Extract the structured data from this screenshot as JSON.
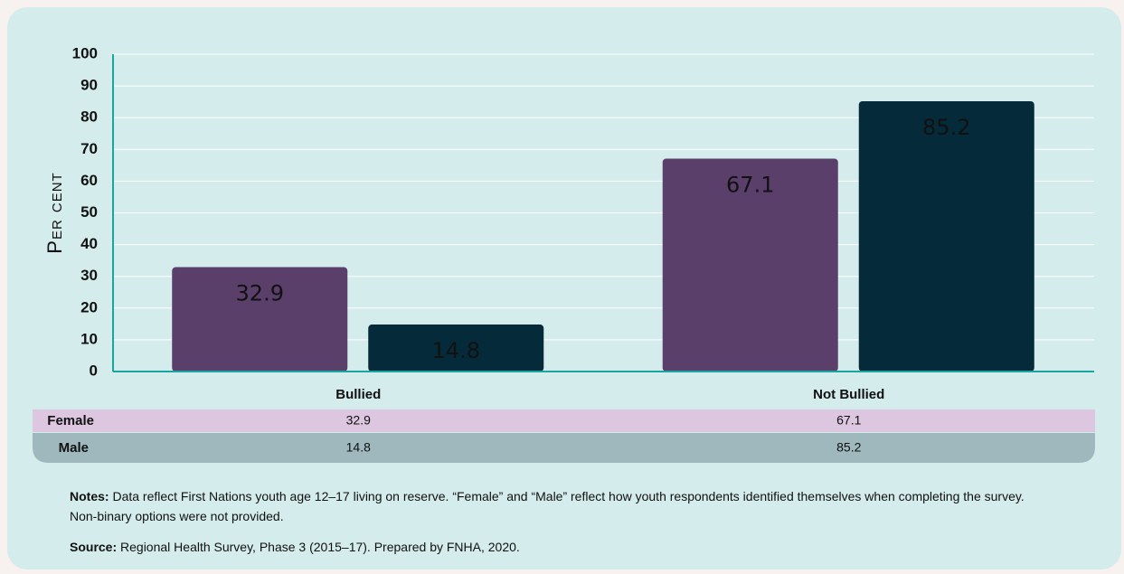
{
  "chart_data": {
    "type": "bar",
    "ylabel": "Per cent",
    "categories": [
      "Bullied",
      "Not Bullied"
    ],
    "series": [
      {
        "name": "Female",
        "color": "#5b3f6b",
        "values": [
          32.9,
          67.1
        ]
      },
      {
        "name": "Male",
        "color": "#052b3a",
        "values": [
          14.8,
          85.2
        ]
      }
    ],
    "ylim": [
      0,
      100
    ],
    "yticks": [
      0,
      10,
      20,
      30,
      40,
      50,
      60,
      70,
      80,
      90,
      100
    ],
    "grid": true
  },
  "notes": {
    "label": "Notes:",
    "text": "Data reflect First Nations youth age 12–17 living on reserve. “Female” and “Male” reflect how youth respondents identified themselves when completing the survey. Non-binary options were not provided."
  },
  "source": {
    "label": "Source:",
    "text": "Regional Health Survey, Phase 3 (2015–17). Prepared by FNHA, 2020."
  }
}
